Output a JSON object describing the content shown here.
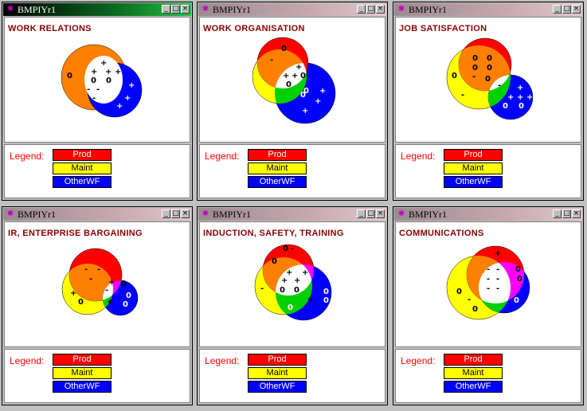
{
  "windows": [
    {
      "window_title": "BMPIYr1",
      "chart_title": "WORK RELATIONS",
      "legend_label": "Legend:",
      "legend": [
        "Prod",
        "Maint",
        "OtherWF"
      ],
      "marks_text": [
        "+",
        "+",
        "+",
        "+",
        "0",
        "0",
        "0",
        "-",
        "-",
        "-",
        "+",
        "+",
        "+"
      ]
    },
    {
      "window_title": "BMPIYr1",
      "chart_title": "WORK ORGANISATION",
      "legend_label": "Legend:",
      "legend": [
        "Prod",
        "Maint",
        "OtherWF"
      ],
      "marks_text": [
        "0",
        "-",
        "+",
        "+",
        "+",
        "0",
        "0",
        "0",
        "0",
        "+",
        "+",
        "+"
      ]
    },
    {
      "window_title": "BMPIYr1",
      "chart_title": "JOB SATISFACTION",
      "legend_label": "Legend:",
      "legend": [
        "Prod",
        "Maint",
        "OtherWF"
      ],
      "marks_text": [
        "0",
        "0",
        "0",
        "0",
        "0",
        "-",
        "0",
        "-",
        "-",
        "+",
        "+",
        "+",
        "+",
        "0",
        "0"
      ]
    },
    {
      "window_title": "BMPIYr1",
      "chart_title": "IR, ENTERPRISE BARGAINING",
      "legend_label": "Legend:",
      "legend": [
        "Prod",
        "Maint",
        "OtherWF"
      ],
      "marks_text": [
        "-",
        "-",
        "-",
        "0",
        "+",
        "-",
        "+",
        "0",
        "0",
        "+",
        "0"
      ]
    },
    {
      "window_title": "BMPIYr1",
      "chart_title": "INDUCTION, SAFETY, TRAINING",
      "legend_label": "Legend:",
      "legend": [
        "Prod",
        "Maint",
        "OtherWF"
      ],
      "marks_text": [
        "0",
        "-",
        "0",
        "+",
        "+",
        "+",
        "+",
        "0",
        "0",
        "-",
        "0",
        "+",
        "0",
        "0"
      ]
    },
    {
      "window_title": "BMPIYr1",
      "chart_title": "COMMUNICATIONS",
      "legend_label": "Legend:",
      "legend": [
        "Prod",
        "Maint",
        "OtherWF"
      ],
      "marks_text": [
        "+",
        "0",
        "-",
        "-",
        "-",
        "-",
        "-",
        "-",
        "0",
        "0",
        "0",
        "-",
        "0"
      ]
    }
  ],
  "colors": {
    "prod": "#ff0000",
    "maint": "#ffff00",
    "other": "#0000ff",
    "prod_maint": "#ff8000",
    "maint_other": "#00d000",
    "prod_other": "#ff00ff",
    "all": "#ffffff"
  },
  "icons": [
    "app-icon",
    "minimize-icon",
    "maximize-icon",
    "close-icon"
  ]
}
